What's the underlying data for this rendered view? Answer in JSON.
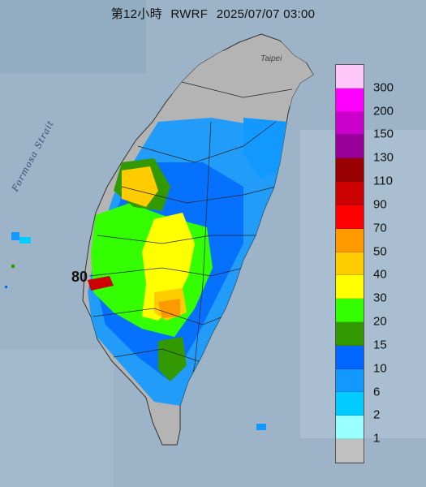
{
  "header": {
    "title": "第12小時",
    "model": "RWRF",
    "datetime": "2025/07/07 03:00"
  },
  "map_labels": {
    "strait": "Formosa Strait",
    "city": "Taipei",
    "peak_value": "80"
  },
  "legend": {
    "labels": [
      "300",
      "200",
      "150",
      "130",
      "110",
      "90",
      "70",
      "50",
      "40",
      "30",
      "20",
      "15",
      "10",
      "6",
      "2",
      "1"
    ],
    "colors": [
      "#fdc8f8",
      "#ff00ff",
      "#cc00cc",
      "#990099",
      "#990000",
      "#cc0000",
      "#ff0000",
      "#ff9900",
      "#ffcc00",
      "#ffff00",
      "#33ff00",
      "#339900",
      "#0066ff",
      "#1199ff",
      "#00ccff",
      "#99ffff",
      "#c0c0c0"
    ]
  },
  "colors": {
    "sea": "#9db4c8",
    "land_dry": "#b4b4b4"
  }
}
